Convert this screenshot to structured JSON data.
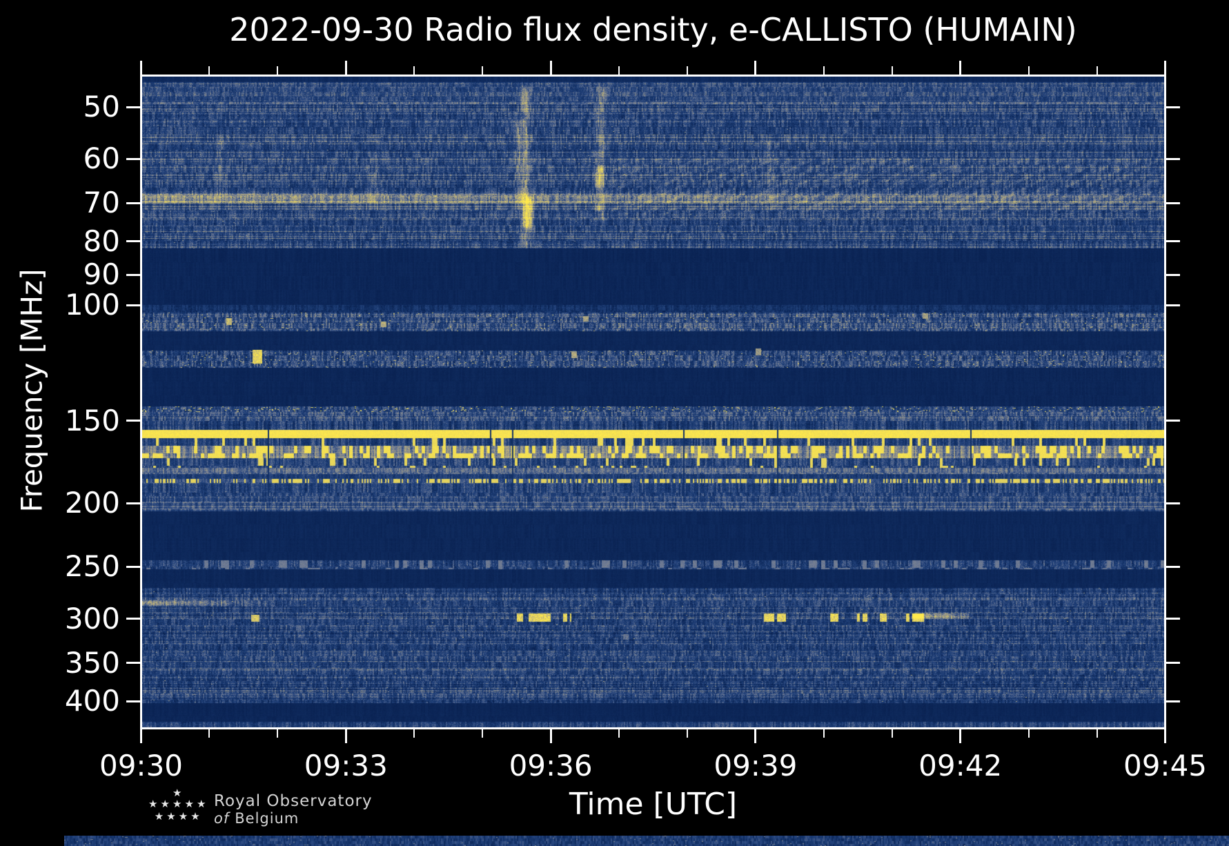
{
  "title": "2022-09-30 Radio flux density, e-CALLISTO (HUMAIN)",
  "axes": {
    "x": {
      "label": "Time [UTC]",
      "tick_labels": [
        "09:30",
        "09:33",
        "09:36",
        "09:39",
        "09:42",
        "09:45"
      ],
      "minor_ticks_per_interval": 2,
      "range_minutes": [
        0,
        15
      ]
    },
    "y": {
      "label": "Frequency [MHz]",
      "tick_values": [
        50,
        60,
        70,
        80,
        90,
        100,
        150,
        200,
        250,
        300,
        350,
        400
      ],
      "scale": "log",
      "range_mhz": [
        44.6,
        441.6
      ]
    }
  },
  "logo": {
    "line1": "Royal Observatory",
    "line2_italic": "of",
    "line2_rest": "Belgium",
    "star_rows": [
      1,
      5,
      4
    ]
  },
  "chart_data": {
    "type": "heatmap",
    "title": "2022-09-30 Radio flux density, e-CALLISTO (HUMAIN)",
    "xlabel": "Time [UTC]",
    "ylabel": "Frequency [MHz]",
    "x_range": [
      "09:30",
      "09:45"
    ],
    "x_span_minutes": 15,
    "y_range_mhz": [
      44.6,
      441.6
    ],
    "y_scale": "log",
    "grid": false,
    "legend": "none",
    "colormap_stops": [
      [
        0.0,
        "#081f4e"
      ],
      [
        0.18,
        "#16356b"
      ],
      [
        0.32,
        "#27467f"
      ],
      [
        0.5,
        "#6f7b95"
      ],
      [
        0.62,
        "#9a9884"
      ],
      [
        0.75,
        "#bdb27f"
      ],
      [
        0.88,
        "#e3d35f"
      ],
      [
        1.0,
        "#ffe94d"
      ]
    ],
    "bands": [
      {
        "id": 1,
        "f0": 44.6,
        "f1": 45.8,
        "base": 0.1,
        "rowVar": 0.02,
        "colAmp": 0.03,
        "pixAmp": 0.03,
        "stripeH": 8
      },
      {
        "id": 2,
        "f0": 45.8,
        "f1": 49.5,
        "base": 0.3,
        "rowVar": 0.05,
        "colAmp": 0.12,
        "pixAmp": 0.11,
        "grayRowP": 0.28,
        "grayBoost": 0.13,
        "stripeH": 7
      },
      {
        "id": 3,
        "f0": 49.5,
        "f1": 82.0,
        "base": 0.27,
        "rowVar": 0.06,
        "colAmp": 0.13,
        "pixAmp": 0.12,
        "grayRowP": 0.22,
        "grayBoost": 0.15,
        "stripeH": 11,
        "speckP": 0.003,
        "speckV": 0.55
      },
      {
        "id": 4,
        "f0": 82.0,
        "f1": 100.0,
        "base": 0.065,
        "rowVar": 0.008,
        "colAmp": 0.022,
        "pixAmp": 0.02,
        "stripeH": 20
      },
      {
        "id": 5,
        "f0": 100.0,
        "f1": 102.5,
        "base": 0.17,
        "rowVar": 0.03,
        "colAmp": 0.09,
        "pixAmp": 0.08,
        "stripeH": 8
      },
      {
        "id": 6,
        "f0": 102.5,
        "f1": 109.6,
        "base": 0.3,
        "rowVar": 0.04,
        "colAmp": 0.17,
        "pixAmp": 0.14,
        "grayRowP": 0.3,
        "grayBoost": 0.1,
        "speckP": 0.012,
        "speckV": 0.8,
        "stripeH": 8
      },
      {
        "id": 7,
        "f0": 109.6,
        "f1": 117.0,
        "base": 0.07,
        "rowVar": 0.008,
        "colAmp": 0.02,
        "pixAmp": 0.02,
        "stripeH": 20
      },
      {
        "id": 8,
        "f0": 117.0,
        "f1": 124.5,
        "base": 0.3,
        "rowVar": 0.04,
        "colAmp": 0.17,
        "pixAmp": 0.14,
        "speckP": 0.02,
        "speckV": 0.75,
        "stripeH": 8
      },
      {
        "id": 9,
        "f0": 124.5,
        "f1": 142.3,
        "base": 0.065,
        "rowVar": 0.008,
        "colAmp": 0.02,
        "pixAmp": 0.02,
        "stripeH": 20
      },
      {
        "id": 10,
        "f0": 142.3,
        "f1": 145.1,
        "base": 0.3,
        "colAmp": 0.15,
        "pixAmp": 0.12,
        "speckP": 0.05,
        "speckV": 0.85,
        "stripeH": 6
      },
      {
        "id": 11,
        "f0": 145.1,
        "f1": 150.0,
        "base": 0.33,
        "rowVar": 0.05,
        "colAmp": 0.15,
        "pixAmp": 0.12,
        "grayRowP": 0.4,
        "grayBoost": 0.11,
        "stripeH": 7
      },
      {
        "id": 12,
        "f0": 150.0,
        "f1": 154.5,
        "base": 0.26,
        "rowVar": 0.04,
        "colAmp": 0.16,
        "pixAmp": 0.1,
        "stripeH": 14
      },
      {
        "id": 13,
        "f0": 154.5,
        "f1": 159.0,
        "base": 0.97,
        "pixAmp": 0.05,
        "stripeH": 14
      },
      {
        "id": 14,
        "f0": 159.0,
        "f1": 163.3,
        "base": 0.27,
        "colAmp": 0.14,
        "pixAmp": 0.1,
        "dashP": 0.1,
        "dashV": 0.92,
        "dashLen": 4,
        "stripeH": 12
      },
      {
        "id": 15,
        "f0": 163.3,
        "f1": 170.6,
        "base": 0.55,
        "rowVar": 0.07,
        "colAmp": 0.14,
        "pixAmp": 0.1,
        "dashP": 0.4,
        "dashV": 0.95,
        "dashLen": 5,
        "stripeH": 24
      },
      {
        "id": 16,
        "f0": 170.6,
        "f1": 176.4,
        "base": 0.3,
        "colAmp": 0.13,
        "pixAmp": 0.1,
        "dashP": 0.1,
        "dashV": 0.9,
        "dashLen": 4,
        "stripeH": 12
      },
      {
        "id": 17,
        "f0": 176.4,
        "f1": 180.3,
        "base": 0.45,
        "rowVar": 0.04,
        "colAmp": 0.12,
        "pixAmp": 0.1,
        "stripeH": 8
      },
      {
        "id": 18,
        "f0": 180.3,
        "f1": 183.4,
        "base": 0.24,
        "colAmp": 0.1,
        "pixAmp": 0.08,
        "stripeH": 8
      },
      {
        "id": 19,
        "f0": 183.4,
        "f1": 186.1,
        "base": 0.35,
        "colAmp": 0.1,
        "pixAmp": 0.08,
        "dashP": 0.45,
        "dashV": 0.88,
        "dashLen": 2,
        "stripeH": 6
      },
      {
        "id": 20,
        "f0": 186.1,
        "f1": 195.0,
        "base": 0.28,
        "rowVar": 0.04,
        "colAmp": 0.14,
        "pixAmp": 0.1,
        "stripeH": 15
      },
      {
        "id": 21,
        "f0": 195.0,
        "f1": 205.5,
        "base": 0.3,
        "rowVar": 0.05,
        "colAmp": 0.13,
        "pixAmp": 0.1,
        "grayRowP": 0.35,
        "grayBoost": 0.11,
        "stripeH": 9
      },
      {
        "id": 22,
        "f0": 205.5,
        "f1": 244.0,
        "base": 0.075,
        "rowVar": 0.008,
        "colAmp": 0.022,
        "pixAmp": 0.02,
        "stripeH": 20
      },
      {
        "id": 23,
        "f0": 244.0,
        "f1": 252.0,
        "base": 0.27,
        "colAmp": 0.14,
        "pixAmp": 0.12,
        "dashP": 0.15,
        "dashV": 0.5,
        "dashLen": 6,
        "stripeH": 10
      },
      {
        "id": 24,
        "f0": 252.0,
        "f1": 269.0,
        "base": 0.075,
        "rowVar": 0.008,
        "colAmp": 0.022,
        "pixAmp": 0.02,
        "stripeH": 20
      },
      {
        "id": 25,
        "f0": 269.0,
        "f1": 402.0,
        "base": 0.24,
        "rowVar": 0.065,
        "colAmp": 0.13,
        "pixAmp": 0.12,
        "grayRowP": 0.25,
        "grayBoost": 0.13,
        "stripeH": 9,
        "speckP": 0.002,
        "speckV": 0.6
      },
      {
        "id": 26,
        "f0": 402.0,
        "f1": 430.0,
        "base": 0.065,
        "rowVar": 0.008,
        "colAmp": 0.02,
        "pixAmp": 0.02,
        "stripeH": 20
      },
      {
        "id": 27,
        "f0": 430.0,
        "f1": 441.6,
        "base": 0.27,
        "rowVar": 0.04,
        "colAmp": 0.13,
        "pixAmp": 0.11,
        "stripeH": 10
      }
    ],
    "features": [
      {
        "type": "hline",
        "f0": 67.3,
        "f1": 70.2,
        "t0": 0,
        "t1": 15,
        "amp": 0.3,
        "ampEnd": 0.1
      },
      {
        "type": "vburst",
        "t": 5.63,
        "sigma": 0.06,
        "f0": 46,
        "f1": 82,
        "amp": 0.22
      },
      {
        "type": "vburst",
        "t": 5.66,
        "sigma": 0.045,
        "f0": 68,
        "f1": 77,
        "amp": 0.62
      },
      {
        "type": "vburst",
        "t": 5.52,
        "sigma": 0.035,
        "f0": 52,
        "f1": 72,
        "amp": 0.15
      },
      {
        "type": "vburst",
        "t": 6.73,
        "sigma": 0.05,
        "f0": 46,
        "f1": 75,
        "amp": 0.2
      },
      {
        "type": "vburst",
        "t": 6.71,
        "sigma": 0.04,
        "f0": 61,
        "f1": 67,
        "amp": 0.3
      },
      {
        "type": "vburst",
        "t": 6.69,
        "sigma": 0.03,
        "f0": 70,
        "f1": 72.5,
        "amp": 0.3
      },
      {
        "type": "vburst",
        "t": 1.15,
        "sigma": 0.05,
        "f0": 55,
        "f1": 70,
        "amp": 0.1
      },
      {
        "type": "vburst",
        "t": 3.4,
        "sigma": 0.05,
        "f0": 58,
        "f1": 72,
        "amp": 0.09
      },
      {
        "type": "vburst",
        "t": 9.2,
        "sigma": 0.05,
        "f0": 55,
        "f1": 70,
        "amp": 0.08
      },
      {
        "type": "chevron",
        "t0": 6.9,
        "t1": 15,
        "f0": 60,
        "f1": 73,
        "amp": 0.07
      },
      {
        "type": "hline",
        "f0": 280,
        "f1": 287,
        "t0": 0,
        "t1": 1.9,
        "amp": 0.38,
        "ampEnd": 0.05
      },
      {
        "type": "dashrow",
        "f0": 295,
        "f1": 303,
        "amp": 0.92,
        "segments": [
          [
            5.5,
            5.6
          ],
          [
            5.68,
            6.0
          ],
          [
            6.18,
            6.3
          ],
          [
            9.13,
            9.45
          ],
          [
            10.1,
            10.22
          ],
          [
            10.5,
            10.65
          ],
          [
            10.83,
            10.93
          ],
          [
            11.22,
            11.48
          ]
        ]
      },
      {
        "type": "hline",
        "f0": 293,
        "f1": 300,
        "t0": 11.3,
        "t1": 12.15,
        "amp": 0.4,
        "ampEnd": 0.25
      },
      {
        "type": "speck",
        "t": 1.7,
        "f": 120,
        "w": 13,
        "h": 20,
        "amp": 0.92
      },
      {
        "type": "speck",
        "t": 1.67,
        "f": 300,
        "w": 11,
        "h": 10,
        "amp": 0.85
      },
      {
        "type": "speck",
        "t": 1.28,
        "f": 106,
        "w": 8,
        "h": 9,
        "amp": 0.8
      },
      {
        "type": "speck",
        "t": 3.55,
        "f": 107,
        "w": 7,
        "h": 8,
        "amp": 0.75
      },
      {
        "type": "speck",
        "t": 6.35,
        "f": 119,
        "w": 8,
        "h": 10,
        "amp": 0.7
      },
      {
        "type": "speck",
        "t": 6.52,
        "f": 105,
        "w": 7,
        "h": 8,
        "amp": 0.7
      },
      {
        "type": "speck",
        "t": 9.05,
        "f": 118,
        "w": 7,
        "h": 9,
        "amp": 0.65
      },
      {
        "type": "speck",
        "t": 11.5,
        "f": 104,
        "w": 7,
        "h": 8,
        "amp": 0.7
      },
      {
        "type": "speck",
        "t": 7.1,
        "f": 320,
        "w": 8,
        "h": 8,
        "amp": 0.5
      },
      {
        "type": "speck",
        "t": 2.3,
        "f": 310,
        "w": 8,
        "h": 8,
        "amp": 0.45
      }
    ]
  }
}
